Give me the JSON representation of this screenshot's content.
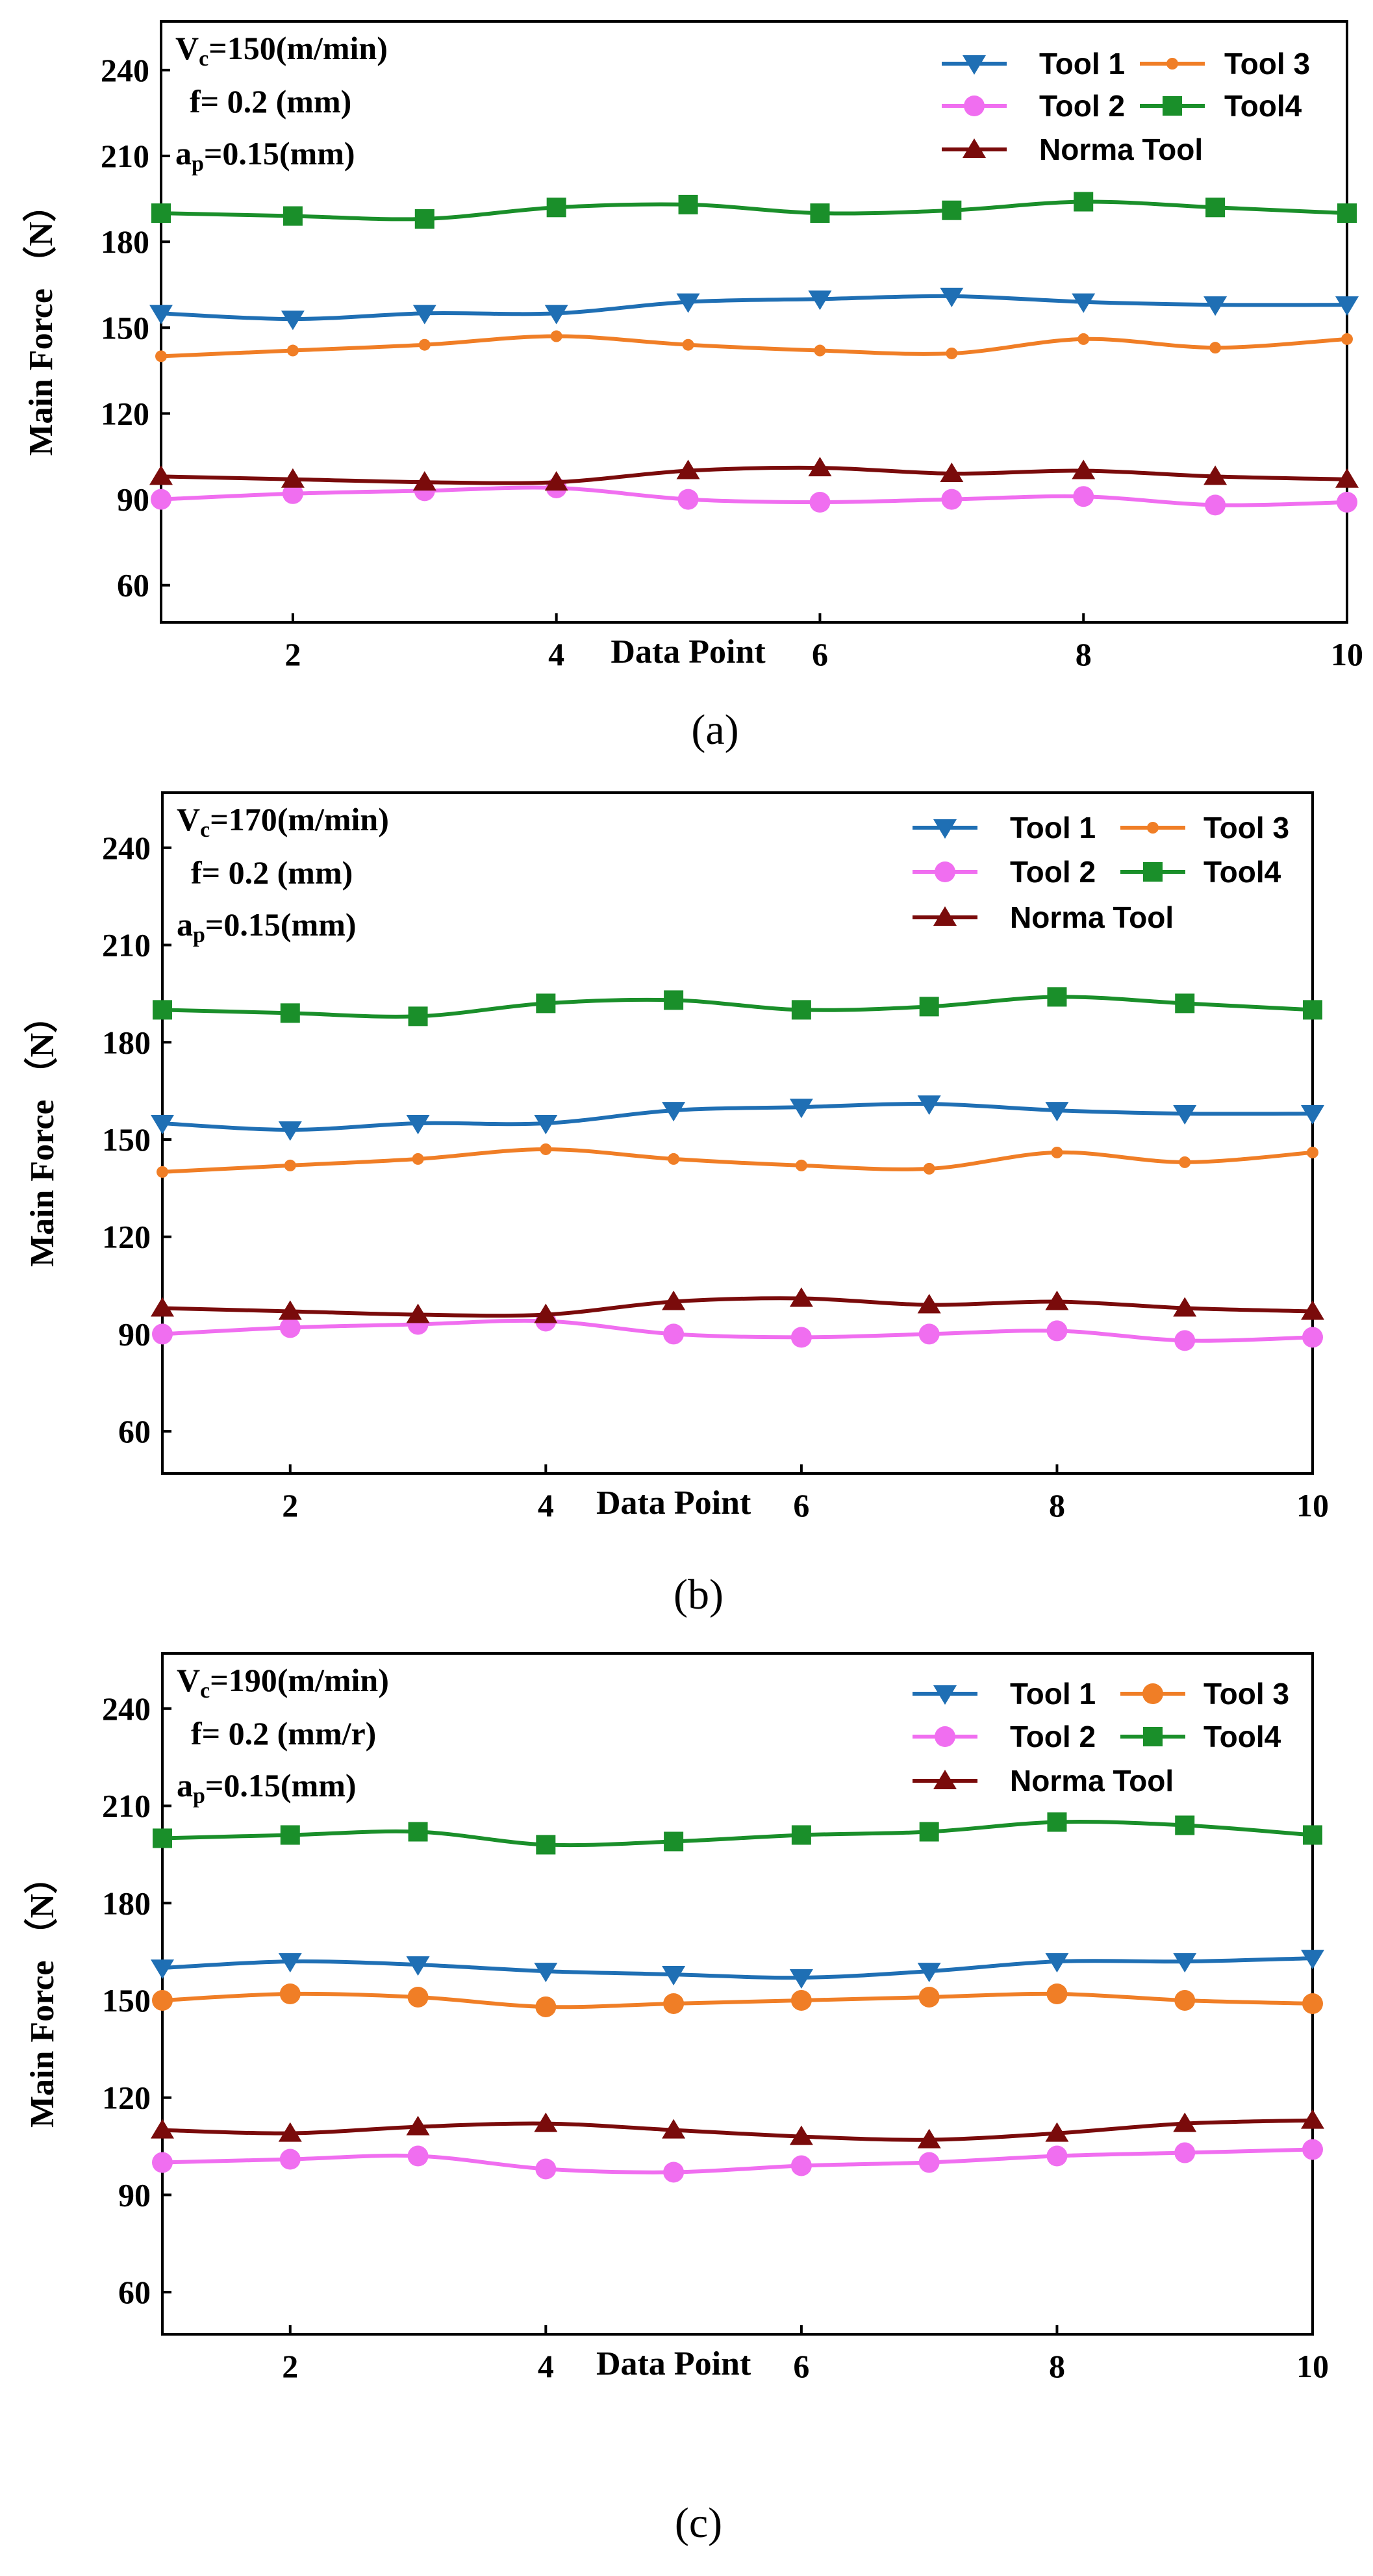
{
  "chart_data": [
    {
      "type": "line",
      "caption": "a",
      "params": {
        "vc_label": "V",
        "vc_sub": "c",
        "vc_value": "=150(m/min)",
        "f_line": "f= 0.2 (mm)",
        "ap_label": "a",
        "ap_sub": "p",
        "ap_value": "=0.15(mm)"
      },
      "xlabel": "Data Point",
      "ylabel": "Main Force （N）",
      "xlim": [
        1,
        10
      ],
      "ylim": [
        47,
        257
      ],
      "xticks": [
        2,
        4,
        6,
        8,
        10
      ],
      "yticks": [
        60,
        90,
        120,
        150,
        180,
        210,
        240
      ],
      "x": [
        1,
        2,
        3,
        4,
        5,
        6,
        7,
        8,
        9,
        10
      ],
      "legend_position": "top-right",
      "series": [
        {
          "name": "Tool 1",
          "color": "#1f6fb4",
          "marker": "triangle-down",
          "values": [
            155,
            153,
            155,
            155,
            159,
            160,
            161,
            159,
            158,
            158
          ]
        },
        {
          "name": "Tool 3",
          "color": "#f07e26",
          "marker": "small-circle",
          "values": [
            140,
            142,
            144,
            147,
            144,
            142,
            141,
            146,
            143,
            146
          ]
        },
        {
          "name": "Tool 2",
          "color": "#f06ef0",
          "marker": "circle",
          "values": [
            90,
            92,
            93,
            94,
            90,
            89,
            90,
            91,
            88,
            89
          ]
        },
        {
          "name": "Tool4",
          "color": "#1a8f2a",
          "marker": "square",
          "values": [
            190,
            189,
            188,
            192,
            193,
            190,
            191,
            194,
            192,
            190
          ]
        },
        {
          "name": "Norma Tool",
          "color": "#7a0b0b",
          "marker": "triangle-up",
          "values": [
            98,
            97,
            96,
            96,
            100,
            101,
            99,
            100,
            98,
            97
          ]
        }
      ]
    },
    {
      "type": "line",
      "caption": "b",
      "params": {
        "vc_label": "V",
        "vc_sub": "c",
        "vc_value": "=170(m/min)",
        "f_line": "f= 0.2 (mm)",
        "ap_label": "a",
        "ap_sub": "p",
        "ap_value": "=0.15(mm)"
      },
      "xlabel": "Data Point",
      "ylabel": "Main Force （N）",
      "xlim": [
        1,
        10
      ],
      "ylim": [
        47,
        257
      ],
      "xticks": [
        2,
        4,
        6,
        8,
        10
      ],
      "yticks": [
        60,
        90,
        120,
        150,
        180,
        210,
        240
      ],
      "x": [
        1,
        2,
        3,
        4,
        5,
        6,
        7,
        8,
        9,
        10
      ],
      "legend_position": "top-right",
      "series": [
        {
          "name": "Tool 1",
          "color": "#1f6fb4",
          "marker": "triangle-down",
          "values": [
            155,
            153,
            155,
            155,
            159,
            160,
            161,
            159,
            158,
            158
          ]
        },
        {
          "name": "Tool 3",
          "color": "#f07e26",
          "marker": "small-circle",
          "values": [
            140,
            142,
            144,
            147,
            144,
            142,
            141,
            146,
            143,
            146
          ]
        },
        {
          "name": "Tool 2",
          "color": "#f06ef0",
          "marker": "circle",
          "values": [
            90,
            92,
            93,
            94,
            90,
            89,
            90,
            91,
            88,
            89
          ]
        },
        {
          "name": "Tool4",
          "color": "#1a8f2a",
          "marker": "square",
          "values": [
            190,
            189,
            188,
            192,
            193,
            190,
            191,
            194,
            192,
            190
          ]
        },
        {
          "name": "Norma Tool",
          "color": "#7a0b0b",
          "marker": "triangle-up",
          "values": [
            98,
            97,
            96,
            96,
            100,
            101,
            99,
            100,
            98,
            97
          ]
        }
      ]
    },
    {
      "type": "line",
      "caption": "c",
      "params": {
        "vc_label": "V",
        "vc_sub": "c",
        "vc_value": "=190(m/min)",
        "f_line": "f= 0.2 (mm/r)",
        "ap_label": "a",
        "ap_sub": "p",
        "ap_value": "=0.15(mm)"
      },
      "xlabel": "Data Point",
      "ylabel": "Main Force （N）",
      "xlim": [
        1,
        10
      ],
      "ylim": [
        47,
        257
      ],
      "xticks": [
        2,
        4,
        6,
        8,
        10
      ],
      "yticks": [
        60,
        90,
        120,
        150,
        180,
        210,
        240
      ],
      "x": [
        1,
        2,
        3,
        4,
        5,
        6,
        7,
        8,
        9,
        10
      ],
      "legend_position": "top-right",
      "series": [
        {
          "name": "Tool 1",
          "color": "#1f6fb4",
          "marker": "triangle-down",
          "values": [
            160,
            162,
            161,
            159,
            158,
            157,
            159,
            162,
            162,
            163
          ]
        },
        {
          "name": "Tool 3",
          "color": "#f07e26",
          "marker": "circle",
          "values": [
            150,
            152,
            151,
            148,
            149,
            150,
            151,
            152,
            150,
            149
          ]
        },
        {
          "name": "Tool 2",
          "color": "#f06ef0",
          "marker": "circle",
          "values": [
            100,
            101,
            102,
            98,
            97,
            99,
            100,
            102,
            103,
            104
          ]
        },
        {
          "name": "Tool4",
          "color": "#1a8f2a",
          "marker": "square",
          "values": [
            200,
            201,
            202,
            198,
            199,
            201,
            202,
            205,
            204,
            201
          ]
        },
        {
          "name": "Norma Tool",
          "color": "#7a0b0b",
          "marker": "triangle-up",
          "values": [
            110,
            109,
            111,
            112,
            110,
            108,
            107,
            109,
            112,
            113
          ]
        }
      ]
    }
  ]
}
